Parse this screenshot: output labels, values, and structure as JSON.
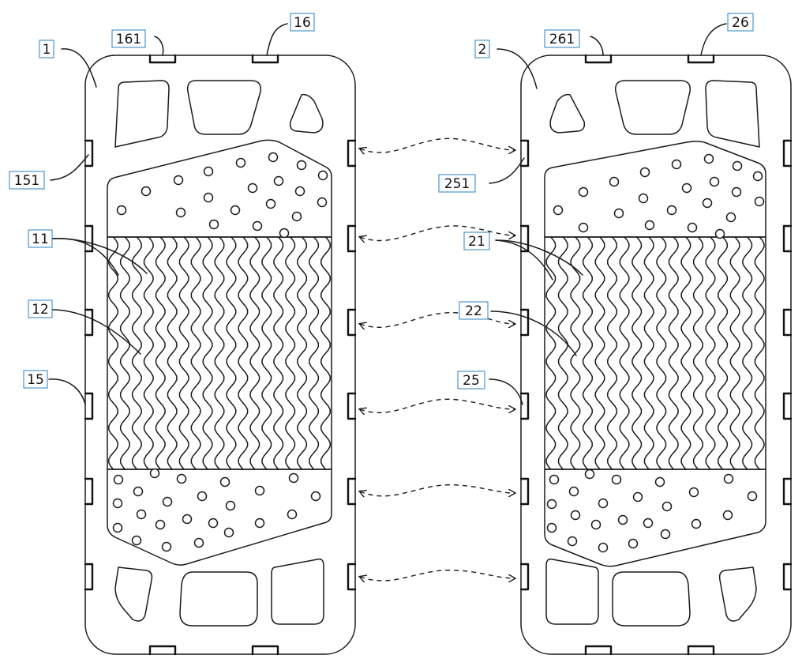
{
  "diagram": {
    "labels": {
      "l1": "1",
      "l161": "161",
      "l16": "16",
      "l151": "151",
      "l11": "11",
      "l12": "12",
      "l15": "15",
      "l2": "2",
      "l261": "261",
      "l26": "26",
      "l251": "251",
      "l21": "21",
      "l22": "22",
      "l25": "25"
    }
  }
}
